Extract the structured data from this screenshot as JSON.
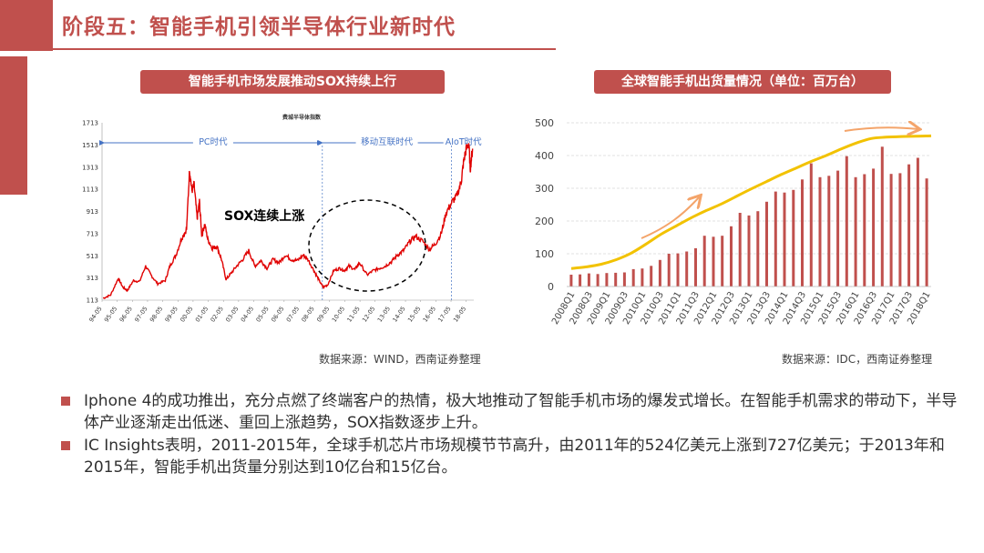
{
  "slide": {
    "title": "阶段五：智能手机引领半导体行业新时代"
  },
  "left_panel": {
    "banner": "智能手机市场发展推动SOX持续上行",
    "source": "数据来源：WIND，西南证券整理"
  },
  "right_panel": {
    "banner": "全球智能手机出货量情况（单位：百万台）",
    "source": "数据来源：IDC，西南证券整理"
  },
  "bullets": [
    "Iphone 4的成功推出，充分点燃了终端客户的热情，极大地推动了智能手机市场的爆发式增长。在智能手机需求的带动下，半导体产业逐渐走出低迷、重回上涨趋势，SOX指数逐步上升。",
    "IC Insights表明，2011-2015年，全球手机芯片市场规模节节高升，由2011年的524亿美元上涨到727亿美元；于2013年和2015年，智能手机出货量分别达到10亿台和15亿台。"
  ],
  "colors": {
    "accent": "#c0504d",
    "line_red": "#e00000",
    "trend_yellow": "#f2c200",
    "arrow_orange": "#f4a46a",
    "era_blue": "#4472c4"
  },
  "chart_data": [
    {
      "type": "line",
      "title": "费城半导体指数",
      "ylim": [
        113,
        1713
      ],
      "y_ticks": [
        113,
        313,
        513,
        713,
        913,
        1113,
        1313,
        1513,
        1713
      ],
      "x_ticks": [
        "94-05",
        "95-05",
        "96-05",
        "97-05",
        "98-05",
        "99-05",
        "00-05",
        "01-05",
        "02-05",
        "03-05",
        "04-05",
        "05-05",
        "06-05",
        "07-05",
        "08-05",
        "09-05",
        "10-05",
        "11-05",
        "12-05",
        "13-05",
        "14-05",
        "15-05",
        "16-05",
        "17-05",
        "18-05"
      ],
      "eras": [
        "PC时代",
        "移动互联时代",
        "AIoT时代"
      ],
      "annotation": "SOX连续上涨",
      "series": [
        {
          "x": [
            1994.4,
            1994.9,
            1995.4,
            1995.7,
            1996.0,
            1996.4,
            1996.8,
            1997.2,
            1997.6,
            1998.0,
            1998.5,
            1998.8,
            1999.2,
            1999.6,
            1999.9,
            2000.1,
            2000.25,
            2000.4,
            2000.6,
            2000.75,
            2000.9,
            2001.1,
            2001.3,
            2001.6,
            2001.9,
            2002.2,
            2002.5,
            2002.8,
            2003.2,
            2003.6,
            2004.0,
            2004.4,
            2004.8,
            2005.2,
            2005.6,
            2006.0,
            2006.4,
            2006.8,
            2007.2,
            2007.6,
            2007.9,
            2008.3,
            2008.6,
            2008.9,
            2009.2,
            2009.6,
            2010.0,
            2010.3,
            2010.6,
            2011.0,
            2011.3,
            2011.8,
            2012.2,
            2012.6,
            2013.0,
            2013.4,
            2013.8,
            2014.2,
            2014.6,
            2015.0,
            2015.5,
            2015.9,
            2016.3,
            2016.7,
            2017.0,
            2017.4,
            2017.7,
            2018.0,
            2018.15,
            2018.3,
            2018.5,
            2018.6,
            2018.75
          ],
          "values": [
            130,
            160,
            310,
            230,
            200,
            290,
            280,
            420,
            330,
            260,
            290,
            420,
            520,
            680,
            750,
            1300,
            1100,
            1150,
            850,
            1000,
            700,
            800,
            660,
            580,
            600,
            480,
            300,
            350,
            420,
            480,
            560,
            420,
            470,
            400,
            480,
            450,
            520,
            480,
            470,
            520,
            480,
            380,
            300,
            230,
            250,
            380,
            400,
            380,
            420,
            390,
            450,
            340,
            380,
            400,
            420,
            460,
            520,
            560,
            640,
            690,
            640,
            570,
            620,
            720,
            900,
            1000,
            1050,
            1180,
            1350,
            1460,
            1530,
            1300,
            1480
          ]
        }
      ]
    },
    {
      "type": "bar",
      "ylim": [
        0,
        500
      ],
      "y_ticks": [
        0,
        100,
        200,
        300,
        400,
        500
      ],
      "categories": [
        "2008Q1",
        "2008Q2",
        "2008Q3",
        "2008Q4",
        "2009Q1",
        "2009Q2",
        "2009Q3",
        "2009Q4",
        "2010Q1",
        "2010Q2",
        "2010Q3",
        "2010Q4",
        "2011Q1",
        "2011Q2",
        "2011Q3",
        "2011Q4",
        "2012Q1",
        "2012Q2",
        "2012Q3",
        "2012Q4",
        "2013Q1",
        "2013Q2",
        "2013Q3",
        "2013Q4",
        "2014Q1",
        "2014Q2",
        "2014Q3",
        "2014Q4",
        "2015Q1",
        "2015Q2",
        "2015Q3",
        "2015Q4",
        "2016Q1",
        "2016Q2",
        "2016Q3",
        "2016Q4",
        "2017Q1",
        "2017Q2",
        "2017Q3",
        "2017Q4",
        "2018Q1"
      ],
      "x_tick_labels": [
        "2008Q1",
        "2008Q3",
        "2009Q1",
        "2009Q3",
        "2010Q1",
        "2010Q3",
        "2011Q1",
        "2011Q3",
        "2012Q1",
        "2012Q3",
        "2013Q1",
        "2013Q3",
        "2014Q1",
        "2014Q3",
        "2015Q1",
        "2015Q3",
        "2016Q1",
        "2016Q3",
        "2017Q1",
        "2017Q3",
        "2018Q1"
      ],
      "values": [
        36,
        37,
        40,
        38,
        41,
        42,
        43,
        53,
        55,
        63,
        81,
        100,
        101,
        107,
        117,
        155,
        152,
        155,
        184,
        225,
        217,
        230,
        259,
        290,
        287,
        295,
        327,
        376,
        334,
        338,
        354,
        398,
        334,
        343,
        360,
        427,
        344,
        346,
        373,
        393,
        330
      ],
      "trend_values": [
        55,
        60,
        68,
        82,
        102,
        130,
        160,
        185,
        210,
        232,
        252,
        275,
        298,
        320,
        342,
        362,
        382,
        400,
        420,
        438,
        452,
        456,
        458,
        459,
        460
      ]
    }
  ]
}
